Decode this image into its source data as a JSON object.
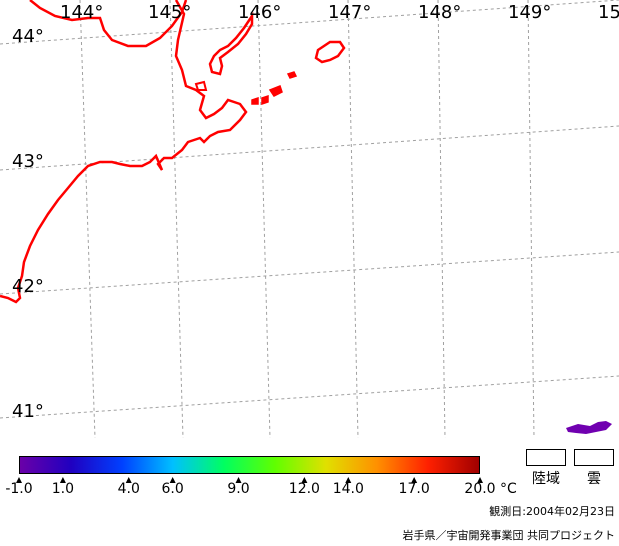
{
  "map": {
    "longitude_labels": [
      "144°",
      "145°",
      "146°",
      "147°",
      "148°",
      "149°",
      "15"
    ],
    "latitude_labels": [
      "44°",
      "43°",
      "42°",
      "41°"
    ],
    "coastline_color": "#ff0000",
    "graticule_color": "#a0a0a0",
    "data_patch_color": "#7000b0"
  },
  "colorbar": {
    "tick_labels": [
      "-1.0",
      "1.0",
      "4.0",
      "6.0",
      "9.0",
      "12.0",
      "14.0",
      "17.0",
      "20.0"
    ],
    "tick_values": [
      -1.0,
      1.0,
      4.0,
      6.0,
      9.0,
      12.0,
      14.0,
      17.0,
      20.0
    ],
    "range": [
      -1.0,
      20.0
    ],
    "unit": "°C",
    "gradient_colors": [
      "#6a00a8",
      "#2000c0",
      "#0040ff",
      "#00c0ff",
      "#00ff60",
      "#60ff00",
      "#e0e000",
      "#ff9000",
      "#ff2000",
      "#a00000"
    ]
  },
  "legend": {
    "land_label": "陸域",
    "cloud_label": "雲"
  },
  "footer": {
    "observation_date": "観測日:2004年02月23日",
    "credit": "岩手県／宇宙開発事業団 共同プロジェクト"
  }
}
